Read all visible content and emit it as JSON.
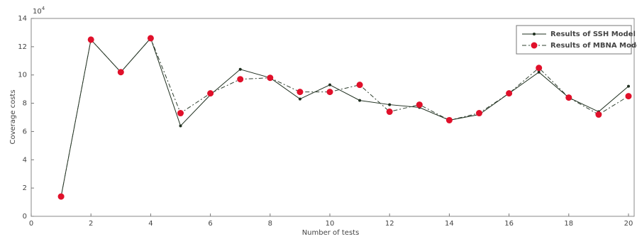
{
  "chart_data": {
    "type": "line",
    "y_label": "Coverage costs",
    "x_label": "Number of tests",
    "y_multiplier": {
      "base": "10",
      "exponent": "4"
    },
    "x": [
      1,
      2,
      3,
      4,
      5,
      6,
      7,
      8,
      9,
      10,
      11,
      12,
      13,
      14,
      15,
      16,
      17,
      18,
      19,
      20
    ],
    "series": [
      {
        "name": "Results of SSH Model",
        "color": "#1f2f1f",
        "dash": false,
        "marker_color": "#1f2f1f",
        "marker_size": 2,
        "values": [
          1.4,
          12.5,
          10.2,
          12.6,
          6.4,
          8.6,
          10.4,
          9.8,
          8.3,
          9.3,
          8.2,
          7.9,
          7.7,
          6.8,
          7.2,
          8.7,
          10.2,
          8.4,
          7.4,
          9.2
        ]
      },
      {
        "name": "Results of MBNA Model",
        "color": "#2f3f2f",
        "dash": true,
        "marker_color": "#e0102a",
        "marker_size": 4.5,
        "values": [
          1.4,
          12.5,
          10.2,
          12.6,
          7.3,
          8.7,
          9.7,
          9.8,
          8.8,
          8.8,
          9.3,
          7.4,
          7.9,
          6.8,
          7.3,
          8.7,
          10.5,
          8.4,
          7.2,
          8.5
        ]
      }
    ],
    "xlim": [
      0,
      20
    ],
    "xticks": [
      0,
      2,
      4,
      6,
      8,
      10,
      12,
      14,
      16,
      18,
      20
    ],
    "ylim": [
      0,
      14
    ],
    "yticks": [
      0,
      2,
      4,
      6,
      8,
      10,
      12,
      14
    ],
    "legend": "top-right",
    "grid": false
  }
}
